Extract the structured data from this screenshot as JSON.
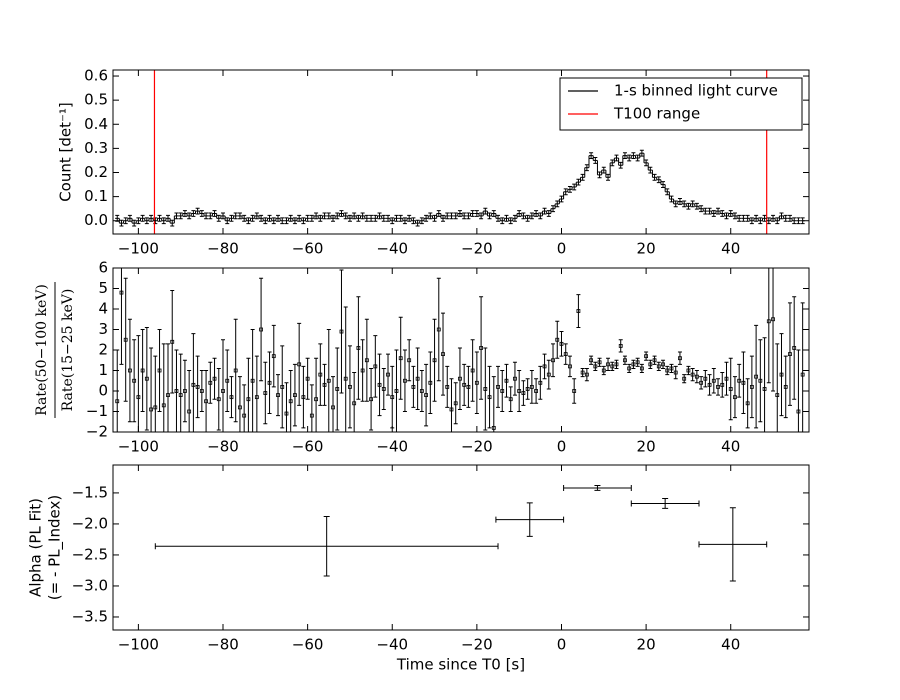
{
  "chart_data": [
    {
      "type": "step",
      "ylabel": "Count [det⁻¹]",
      "x": [
        -105,
        -104,
        -103,
        -102,
        -101,
        -100,
        -99,
        -98,
        -97,
        -96,
        -95,
        -94,
        -93,
        -92,
        -91,
        -90,
        -89,
        -88,
        -87,
        -86,
        -85,
        -84,
        -83,
        -82,
        -81,
        -80,
        -79,
        -78,
        -77,
        -76,
        -75,
        -74,
        -73,
        -72,
        -71,
        -70,
        -69,
        -68,
        -67,
        -66,
        -65,
        -64,
        -63,
        -62,
        -61,
        -60,
        -59,
        -58,
        -57,
        -56,
        -55,
        -54,
        -53,
        -52,
        -51,
        -50,
        -49,
        -48,
        -47,
        -46,
        -45,
        -44,
        -43,
        -42,
        -41,
        -40,
        -39,
        -38,
        -37,
        -36,
        -35,
        -34,
        -33,
        -32,
        -31,
        -30,
        -29,
        -28,
        -27,
        -26,
        -25,
        -24,
        -23,
        -22,
        -21,
        -20,
        -19,
        -18,
        -17,
        -16,
        -15,
        -14,
        -13,
        -12,
        -11,
        -10,
        -9,
        -8,
        -7,
        -6,
        -5,
        -4,
        -3,
        -2,
        -1,
        0,
        1,
        2,
        3,
        4,
        5,
        6,
        7,
        8,
        9,
        10,
        11,
        12,
        13,
        14,
        15,
        16,
        17,
        18,
        19,
        20,
        21,
        22,
        23,
        24,
        25,
        26,
        27,
        28,
        29,
        30,
        31,
        32,
        33,
        34,
        35,
        36,
        37,
        38,
        39,
        40,
        41,
        42,
        43,
        44,
        45,
        46,
        47,
        48,
        49,
        50,
        51,
        52,
        53,
        54,
        55,
        56,
        57
      ],
      "series": [
        {
          "name": "1-s binned light curve",
          "color": "#000000",
          "yerr": 0.012,
          "values": [
            0.01,
            -0.01,
            0.0,
            0.01,
            -0.01,
            0.0,
            0.01,
            0.0,
            0.01,
            0.0,
            0.01,
            0.0,
            0.01,
            -0.01,
            0.02,
            0.02,
            0.03,
            0.02,
            0.03,
            0.04,
            0.03,
            0.02,
            0.02,
            0.03,
            0.01,
            0.02,
            0.0,
            0.01,
            0.02,
            0.02,
            0.01,
            0.0,
            0.01,
            0.02,
            0.01,
            0.0,
            0.01,
            0.0,
            0.01,
            0.0,
            0.0,
            0.01,
            0.0,
            0.01,
            0.0,
            0.01,
            0.01,
            0.02,
            0.01,
            0.02,
            0.02,
            0.01,
            0.02,
            0.03,
            0.02,
            0.01,
            0.02,
            0.01,
            0.02,
            0.01,
            0.01,
            0.01,
            0.02,
            0.01,
            0.01,
            0.0,
            0.01,
            0.01,
            0.0,
            0.01,
            0.0,
            -0.01,
            0.0,
            0.01,
            0.02,
            0.01,
            0.03,
            0.01,
            0.02,
            0.02,
            0.02,
            0.03,
            0.02,
            0.02,
            0.03,
            0.03,
            0.02,
            0.04,
            0.02,
            0.03,
            0.01,
            0.0,
            0.01,
            0.0,
            0.01,
            0.03,
            0.02,
            0.01,
            0.02,
            0.03,
            0.02,
            0.04,
            0.03,
            0.05,
            0.07,
            0.09,
            0.12,
            0.13,
            0.14,
            0.16,
            0.18,
            0.22,
            0.27,
            0.25,
            0.19,
            0.21,
            0.18,
            0.24,
            0.26,
            0.23,
            0.27,
            0.26,
            0.27,
            0.26,
            0.28,
            0.24,
            0.21,
            0.18,
            0.17,
            0.15,
            0.12,
            0.09,
            0.07,
            0.08,
            0.07,
            0.06,
            0.07,
            0.06,
            0.05,
            0.04,
            0.04,
            0.03,
            0.04,
            0.03,
            0.02,
            0.03,
            0.02,
            0.01,
            0.01,
            0.01,
            0.0,
            0.01,
            0.0,
            0.01,
            0.0,
            0.01,
            0.0,
            0.02,
            0.01,
            0.01,
            0.0,
            0.0,
            0.0
          ]
        },
        {
          "name": "T100 range",
          "color": "#ff0000",
          "x": [
            -96.2,
            48.5
          ]
        }
      ],
      "xlim": [
        -106,
        58.5
      ],
      "xticks": [
        {
          "value": -100,
          "label": "−100"
        },
        {
          "value": -80,
          "label": "−80"
        },
        {
          "value": -60,
          "label": "−60"
        },
        {
          "value": -40,
          "label": "−40"
        },
        {
          "value": -20,
          "label": "−20"
        },
        0,
        20,
        40
      ],
      "ylim": [
        -0.055,
        0.625
      ],
      "yticks": [
        {
          "value": 0,
          "label": "0.0"
        },
        0.1,
        0.2,
        0.3,
        0.4,
        0.5,
        0.6
      ],
      "legend": "upper right"
    },
    {
      "type": "errorbar",
      "ylabel_numerator": "Rate(50−100 keV)",
      "ylabel_denominator": "Rate(15−25 keV)",
      "x": [
        -105,
        -104,
        -103,
        -102,
        -101,
        -100,
        -99,
        -98,
        -97,
        -96,
        -95,
        -94,
        -93,
        -92,
        -91,
        -90,
        -89,
        -88,
        -87,
        -86,
        -85,
        -84,
        -83,
        -82,
        -81,
        -80,
        -79,
        -78,
        -77,
        -76,
        -75,
        -74,
        -73,
        -72,
        -71,
        -70,
        -69,
        -68,
        -67,
        -66,
        -65,
        -64,
        -63,
        -62,
        -61,
        -60,
        -59,
        -58,
        -57,
        -56,
        -55,
        -54,
        -53,
        -52,
        -51,
        -50,
        -49,
        -48,
        -47,
        -46,
        -45,
        -44,
        -43,
        -42,
        -41,
        -40,
        -39,
        -38,
        -37,
        -36,
        -35,
        -34,
        -33,
        -32,
        -31,
        -30,
        -29,
        -28,
        -27,
        -26,
        -25,
        -24,
        -23,
        -22,
        -21,
        -20,
        -19,
        -18,
        -17,
        -16,
        -15,
        -14,
        -13,
        -12,
        -11,
        -10,
        -9,
        -8,
        -7,
        -6,
        -5,
        -4,
        -3,
        -2,
        -1,
        0,
        1,
        2,
        3,
        4,
        5,
        6,
        7,
        8,
        9,
        10,
        11,
        12,
        13,
        14,
        15,
        16,
        17,
        18,
        19,
        20,
        21,
        22,
        23,
        24,
        25,
        26,
        27,
        28,
        29,
        30,
        31,
        32,
        33,
        34,
        35,
        36,
        37,
        38,
        39,
        40,
        41,
        42,
        43,
        44,
        45,
        46,
        47,
        48,
        49,
        50,
        51,
        52,
        53,
        54,
        55,
        56,
        57
      ],
      "color": "#000000",
      "values": [
        -0.5,
        4.8,
        2.5,
        1.0,
        0.5,
        -0.3,
        1.0,
        0.6,
        -0.9,
        -0.8,
        1.0,
        -0.7,
        -0.2,
        2.4,
        0.0,
        -0.2,
        0.0,
        -1.0,
        0.3,
        0.2,
        0.0,
        -0.5,
        0.4,
        0.6,
        -0.4,
        0.0,
        0.5,
        -0.3,
        1.0,
        -0.8,
        -1.2,
        -0.4,
        0.5,
        -0.3,
        3.0,
        -0.1,
        0.4,
        1.7,
        -0.2,
        0.2,
        -1.1,
        -0.5,
        -0.2,
        1.3,
        -0.3,
        0.6,
        -1.2,
        -0.4,
        0.8,
        0.3,
        0.5,
        -0.8,
        0.1,
        2.9,
        0.6,
        0.2,
        -0.6,
        2.1,
        1.0,
        1.5,
        -0.4,
        1.2,
        0.3,
        0.1,
        0.8,
        -0.3,
        0.0,
        1.6,
        0.5,
        1.5,
        0.2,
        0.6,
        0.0,
        -0.2,
        0.4,
        1.5,
        3.0,
        1.8,
        0.2,
        -0.9,
        -0.6,
        0.6,
        0.3,
        0.2,
        1.0,
        0.4,
        2.1,
        0.1,
        -0.3,
        -1.8,
        0.2,
        0.0,
        0.5,
        -0.4,
        0.6,
        0.0,
        -0.1,
        0.1,
        0.2,
        0.0,
        0.4,
        1.2,
        0.8,
        1.5,
        2.5,
        2.3,
        1.8,
        1.2,
        0.0,
        3.9,
        0.9,
        0.8,
        1.5,
        1.2,
        1.4,
        1.0,
        1.3,
        1.2,
        1.3,
        2.2,
        1.5,
        1.1,
        1.3,
        1.4,
        1.1,
        1.7,
        1.3,
        1.5,
        1.2,
        1.3,
        1.0,
        1.1,
        0.9,
        1.6,
        0.6,
        1.0,
        0.8,
        0.7,
        0.4,
        0.6,
        0.3,
        0.5,
        0.2,
        0.3,
        0.6,
        0.1,
        -0.3,
        0.5,
        0.4,
        -0.6,
        0.2,
        0.7,
        0.5,
        0.1,
        3.4,
        3.5,
        -0.2,
        0.8,
        0.2,
        1.8,
        2.1,
        -1.0,
        0.8
      ],
      "errors": [
        2.5,
        3.5,
        3.0,
        2.5,
        2.0,
        3.0,
        2.0,
        2.5,
        3.0,
        2.5,
        2.0,
        3.0,
        2.5,
        2.5,
        2.0,
        2.0,
        1.5,
        2.0,
        2.5,
        1.5,
        1.0,
        1.5,
        1.0,
        1.0,
        1.5,
        2.5,
        1.5,
        1.0,
        2.5,
        1.5,
        1.5,
        2.0,
        2.5,
        2.0,
        2.5,
        1.5,
        1.5,
        1.5,
        1.0,
        2.0,
        1.5,
        1.5,
        1.5,
        2.0,
        1.5,
        1.0,
        1.5,
        2.0,
        1.5,
        1.0,
        2.5,
        1.5,
        2.0,
        3.0,
        3.5,
        2.0,
        1.5,
        2.5,
        1.5,
        2.0,
        1.5,
        1.5,
        1.5,
        1.0,
        1.0,
        1.5,
        2.0,
        2.0,
        1.5,
        1.0,
        1.0,
        1.5,
        1.0,
        1.5,
        1.5,
        2.0,
        2.5,
        2.0,
        1.0,
        1.5,
        1.0,
        1.5,
        1.0,
        1.0,
        1.5,
        1.5,
        2.5,
        2.0,
        1.5,
        2.5,
        1.0,
        1.0,
        0.8,
        0.6,
        0.8,
        1.0,
        0.6,
        0.5,
        0.8,
        0.6,
        0.8,
        0.6,
        0.7,
        0.8,
        0.9,
        0.6,
        0.5,
        0.5,
        0.6,
        0.8,
        0.2,
        0.3,
        0.2,
        0.2,
        0.2,
        0.2,
        0.3,
        0.2,
        0.2,
        0.3,
        0.2,
        0.2,
        0.2,
        0.2,
        0.2,
        0.2,
        0.2,
        0.2,
        0.2,
        0.2,
        0.2,
        0.2,
        0.3,
        0.3,
        0.2,
        0.2,
        0.3,
        0.3,
        0.3,
        0.4,
        0.5,
        0.6,
        0.4,
        0.6,
        0.8,
        1.5,
        1.0,
        0.8,
        1.5,
        1.2,
        1.5,
        2.5,
        2.0,
        2.5,
        3.0,
        3.5,
        2.5,
        2.0,
        1.5,
        2.5,
        2.5,
        3.0,
        3.5
      ],
      "xlim": [
        -106,
        58.5
      ],
      "xticks": [
        {
          "value": -100,
          "label": "−100"
        },
        {
          "value": -80,
          "label": "−80"
        },
        {
          "value": -60,
          "label": "−60"
        },
        {
          "value": -40,
          "label": "−40"
        },
        {
          "value": -20,
          "label": "−20"
        },
        0,
        20,
        40
      ],
      "ylim": [
        -2,
        6
      ],
      "yticks": [
        {
          "value": -2,
          "label": "−2"
        },
        {
          "value": -1,
          "label": "−1"
        },
        0,
        1,
        2,
        3,
        4,
        5,
        6
      ]
    },
    {
      "type": "errorbar",
      "ylabel": [
        "Alpha (PL Fit)",
        "(= - PL_Index)"
      ],
      "xlabel": "Time since T0 [s]",
      "color": "#000000",
      "x": [
        -55.5,
        -7.5,
        8.5,
        24.5,
        40.5
      ],
      "xerr": [
        40.5,
        8,
        8,
        8,
        8
      ],
      "values": [
        -2.36,
        -1.93,
        -1.42,
        -1.67,
        -2.33
      ],
      "errors": [
        0.48,
        0.27,
        0.04,
        0.08,
        0.59
      ],
      "xlim": [
        -106,
        58.5
      ],
      "xticks": [
        {
          "value": -100,
          "label": "−100"
        },
        {
          "value": -80,
          "label": "−80"
        },
        {
          "value": -60,
          "label": "−60"
        },
        {
          "value": -40,
          "label": "−40"
        },
        {
          "value": -20,
          "label": "−20"
        },
        0,
        20,
        40
      ],
      "ylim": [
        -3.71,
        -1.05
      ],
      "yticks": [
        {
          "value": -3.5,
          "label": "−3.5"
        },
        {
          "value": -3,
          "label": "−3.0"
        },
        {
          "value": -2.5,
          "label": "−2.5"
        },
        {
          "value": -2,
          "label": "−2.0"
        },
        {
          "value": -1.5,
          "label": "−1.5"
        }
      ]
    }
  ]
}
